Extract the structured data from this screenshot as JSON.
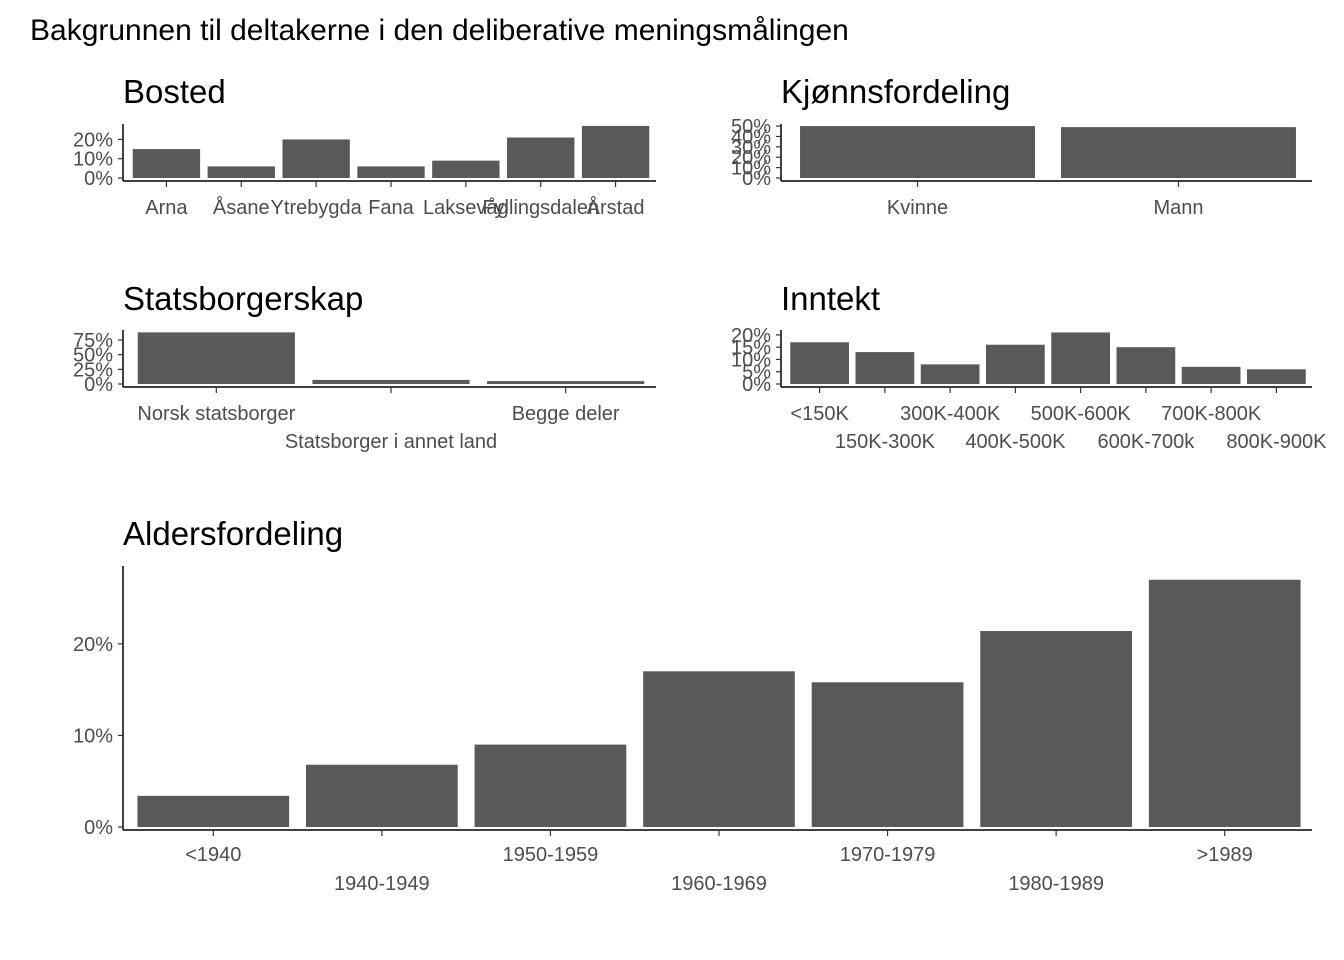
{
  "title": "Bakgrunnen til deltakerne i den deliberative meningsmålingen",
  "colors": {
    "bar": "#595959",
    "axis": "#000000",
    "tick_text": "#4d4d4d"
  },
  "chart_data": [
    {
      "id": "bosted",
      "type": "bar",
      "title": "Bosted",
      "categories": [
        "Arna",
        "Åsane",
        "Ytrebygda",
        "Fana",
        "Laksevåg",
        "Fyllingsdalen",
        "Årstad"
      ],
      "values": [
        15,
        6,
        20,
        6,
        9,
        21,
        27
      ],
      "y_ticks": [
        "0%",
        "10%",
        "20%"
      ],
      "y_tick_values": [
        0,
        10,
        20
      ],
      "ylim": [
        0,
        28
      ],
      "label_rows": 1,
      "grid": false
    },
    {
      "id": "kjonn",
      "type": "bar",
      "title": "Kjønnsfordeling",
      "categories": [
        "Kvinne",
        "Mann"
      ],
      "values": [
        50,
        49
      ],
      "y_ticks": [
        "0%",
        "10%",
        "20%",
        "30%",
        "40%",
        "50%"
      ],
      "y_tick_values": [
        0,
        10,
        20,
        30,
        40,
        50
      ],
      "ylim": [
        0,
        52
      ],
      "label_rows": 1,
      "grid": false
    },
    {
      "id": "statsborgerskap",
      "type": "bar",
      "title": "Statsborgerskap",
      "categories": [
        "Norsk statsborger",
        "Statsborger i annet land",
        "Begge deler"
      ],
      "values": [
        88,
        7,
        5
      ],
      "y_ticks": [
        "0%",
        "25%",
        "50%",
        "75%"
      ],
      "y_tick_values": [
        0,
        25,
        50,
        75
      ],
      "ylim": [
        0,
        92
      ],
      "label_rows": 2,
      "grid": false
    },
    {
      "id": "inntekt",
      "type": "bar",
      "title": "Inntekt",
      "categories": [
        "<150K",
        "150K-300K",
        "300K-400K",
        "400K-500K",
        "500K-600K",
        "600K-700k",
        "700K-800K",
        "800K-900K"
      ],
      "values": [
        17,
        13,
        8,
        16,
        21,
        15,
        7,
        6
      ],
      "y_ticks": [
        "0%",
        "5%",
        "10%",
        "15%",
        "20%"
      ],
      "y_tick_values": [
        0,
        5,
        10,
        15,
        20
      ],
      "ylim": [
        0,
        22
      ],
      "label_rows": 2,
      "grid": false
    },
    {
      "id": "alder",
      "type": "bar",
      "title": "Aldersfordeling",
      "categories": [
        "<1940",
        "1940-1949",
        "1950-1959",
        "1960-1969",
        "1970-1979",
        "1980-1989",
        ">1989"
      ],
      "values": [
        3.4,
        6.8,
        9.0,
        17.0,
        15.8,
        21.4,
        27.0
      ],
      "y_ticks": [
        "0%",
        "10%",
        "20%"
      ],
      "y_tick_values": [
        0,
        10,
        20
      ],
      "ylim": [
        0,
        28.5
      ],
      "label_rows": 2,
      "grid": false
    }
  ]
}
